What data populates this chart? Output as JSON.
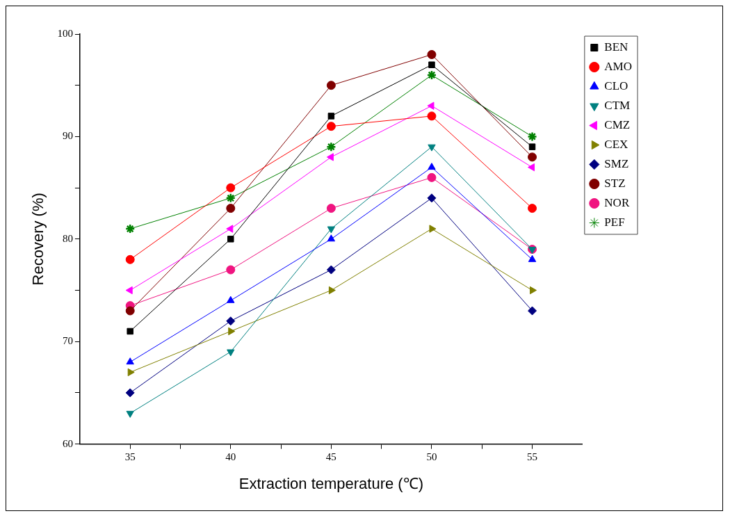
{
  "chart_data": {
    "type": "line",
    "xlabel": "Extraction temperature (℃)",
    "ylabel": "Recovery (%)",
    "x": [
      35,
      40,
      45,
      50,
      55
    ],
    "xlim": [
      32.5,
      57.5
    ],
    "xticks": [
      35,
      {
        "value": 37.5,
        "label": null
      },
      40,
      {
        "value": 42.5,
        "label": null
      },
      45,
      {
        "value": 47.5,
        "label": null
      },
      50,
      {
        "value": 52.5,
        "label": null
      },
      55
    ],
    "ylim": [
      60,
      100
    ],
    "yticks": [
      60,
      {
        "value": 65,
        "label": null
      },
      70,
      {
        "value": 75,
        "label": null
      },
      80,
      {
        "value": 85,
        "label": null
      },
      90,
      {
        "value": 95,
        "label": null
      },
      100
    ],
    "grid": false,
    "legend": "right",
    "line_style": "solid",
    "series": [
      {
        "name": "BEN",
        "color": "#000000",
        "marker": "square",
        "values": [
          71,
          80,
          92,
          97,
          89
        ]
      },
      {
        "name": "AMO",
        "color": "#ff0000",
        "marker": "circle",
        "values": [
          78,
          85,
          91,
          92,
          83
        ]
      },
      {
        "name": "CLO",
        "color": "#0000ff",
        "marker": "triangle",
        "values": [
          68,
          74,
          80,
          87,
          78
        ]
      },
      {
        "name": "CTM",
        "color": "#008080",
        "marker": "triangle-down",
        "values": [
          63,
          69,
          81,
          89,
          79
        ]
      },
      {
        "name": "CMZ",
        "color": "#ff00ff",
        "marker": "triangle-left",
        "values": [
          75,
          81,
          88,
          93,
          87
        ]
      },
      {
        "name": "CEX",
        "color": "#808000",
        "marker": "triangle-right",
        "values": [
          67,
          71,
          75,
          81,
          75
        ]
      },
      {
        "name": "SMZ",
        "color": "#000080",
        "marker": "diamond",
        "values": [
          65,
          72,
          77,
          84,
          73
        ]
      },
      {
        "name": "STZ",
        "color": "#800000",
        "marker": "circle",
        "values": [
          73,
          83,
          95,
          98,
          88
        ]
      },
      {
        "name": "NOR",
        "color": "#f01480",
        "marker": "circle",
        "values": [
          73.5,
          77,
          83,
          86,
          79
        ]
      },
      {
        "name": "PEF",
        "color": "#008000",
        "marker": "cross",
        "values": [
          81,
          84,
          89,
          96,
          90
        ]
      }
    ]
  }
}
